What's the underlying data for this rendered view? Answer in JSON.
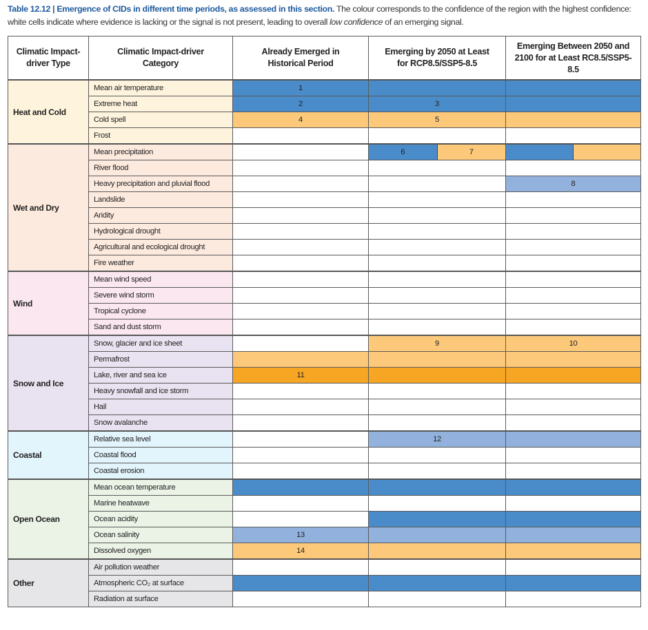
{
  "caption": {
    "bold": "Table 12.12 | Emergence of CIDs in different time periods, as assessed in this section.",
    "text1": " The colour corresponds to the confidence of the region with the highest confidence: white cells indicate where evidence is lacking or the signal is not present, leading to overall ",
    "italic": "low confidence",
    "text2": " of an emerging signal."
  },
  "colors": {
    "b": "#4a8bc9",
    "o": "#fcc97a",
    "l": "#92b2dd",
    "d": "#f6a623",
    "w": "#ffffff"
  },
  "headers": [
    "Climatic Impact-driver Type",
    "Climatic Impact-driver Category",
    "Already Emerged in Historical Period",
    "Emerging by 2050 at Least for RCP8.5/SSP5-8.5",
    "Emerging Between 2050 and 2100 for at Least RC8.5/SSP5-8.5"
  ],
  "groups": [
    {
      "type": "Heat and Cold",
      "bg": "#fef4dd",
      "rows": [
        {
          "category": "Mean air temperature",
          "cells": [
            {
              "c": "b",
              "label": "1"
            },
            {
              "c": "b"
            },
            {
              "c": "b"
            }
          ]
        },
        {
          "category": "Extreme heat",
          "cells": [
            {
              "c": "b",
              "label": "2"
            },
            {
              "c": "b",
              "label": "3"
            },
            {
              "c": "b"
            }
          ]
        },
        {
          "category": "Cold spell",
          "cells": [
            {
              "c": "o",
              "label": "4"
            },
            {
              "c": "o",
              "label": "5"
            },
            {
              "c": "o"
            }
          ]
        },
        {
          "category": "Frost",
          "cells": [
            {
              "c": "w"
            },
            {
              "c": "w"
            },
            {
              "c": "w"
            }
          ]
        }
      ]
    },
    {
      "type": "Wet and Dry",
      "bg": "#fdeadf",
      "rows": [
        {
          "category": "Mean precipitation",
          "cells": [
            {
              "c": "w"
            },
            {
              "split": [
                {
                  "c": "b",
                  "label": "6"
                },
                {
                  "c": "o",
                  "label": "7"
                }
              ]
            },
            {
              "split": [
                {
                  "c": "b"
                },
                {
                  "c": "o"
                }
              ]
            }
          ]
        },
        {
          "category": "River flood",
          "cells": [
            {
              "c": "w"
            },
            {
              "c": "w"
            },
            {
              "c": "w"
            }
          ]
        },
        {
          "category": "Heavy precipitation and pluvial flood",
          "cells": [
            {
              "c": "w"
            },
            {
              "c": "w"
            },
            {
              "c": "l",
              "label": "8"
            }
          ]
        },
        {
          "category": "Landslide",
          "cells": [
            {
              "c": "w"
            },
            {
              "c": "w"
            },
            {
              "c": "w"
            }
          ]
        },
        {
          "category": "Aridity",
          "cells": [
            {
              "c": "w"
            },
            {
              "c": "w"
            },
            {
              "c": "w"
            }
          ]
        },
        {
          "category": "Hydrological drought",
          "cells": [
            {
              "c": "w"
            },
            {
              "c": "w"
            },
            {
              "c": "w"
            }
          ]
        },
        {
          "category": "Agricultural and ecological drought",
          "cells": [
            {
              "c": "w"
            },
            {
              "c": "w"
            },
            {
              "c": "w"
            }
          ]
        },
        {
          "category": "Fire weather",
          "cells": [
            {
              "c": "w"
            },
            {
              "c": "w"
            },
            {
              "c": "w"
            }
          ]
        }
      ]
    },
    {
      "type": "Wind",
      "bg": "#fbe7f0",
      "rows": [
        {
          "category": "Mean wind speed",
          "cells": [
            {
              "c": "w"
            },
            {
              "c": "w"
            },
            {
              "c": "w"
            }
          ]
        },
        {
          "category": "Severe wind storm",
          "cells": [
            {
              "c": "w"
            },
            {
              "c": "w"
            },
            {
              "c": "w"
            }
          ]
        },
        {
          "category": "Tropical cyclone",
          "cells": [
            {
              "c": "w"
            },
            {
              "c": "w"
            },
            {
              "c": "w"
            }
          ]
        },
        {
          "category": "Sand and dust storm",
          "cells": [
            {
              "c": "w"
            },
            {
              "c": "w"
            },
            {
              "c": "w"
            }
          ]
        }
      ]
    },
    {
      "type": "Snow and Ice",
      "bg": "#e8e2f1",
      "rows": [
        {
          "category": "Snow, glacier and ice sheet",
          "cells": [
            {
              "c": "w"
            },
            {
              "c": "o",
              "label": "9"
            },
            {
              "c": "o",
              "label": "10"
            }
          ]
        },
        {
          "category": "Permafrost",
          "cells": [
            {
              "c": "o"
            },
            {
              "c": "o"
            },
            {
              "c": "o"
            }
          ]
        },
        {
          "category": "Lake, river and sea ice",
          "cells": [
            {
              "c": "d",
              "label": "11"
            },
            {
              "c": "d"
            },
            {
              "c": "d"
            }
          ]
        },
        {
          "category": "Heavy snowfall and ice storm",
          "cells": [
            {
              "c": "w"
            },
            {
              "c": "w"
            },
            {
              "c": "w"
            }
          ]
        },
        {
          "category": "Hail",
          "cells": [
            {
              "c": "w"
            },
            {
              "c": "w"
            },
            {
              "c": "w"
            }
          ]
        },
        {
          "category": "Snow avalanche",
          "cells": [
            {
              "c": "w"
            },
            {
              "c": "w"
            },
            {
              "c": "w"
            }
          ]
        }
      ]
    },
    {
      "type": "Coastal",
      "bg": "#e2f4fc",
      "rows": [
        {
          "category": "Relative sea level",
          "cells": [
            {
              "c": "w"
            },
            {
              "c": "l",
              "label": "12"
            },
            {
              "c": "l"
            }
          ]
        },
        {
          "category": "Coastal flood",
          "cells": [
            {
              "c": "w"
            },
            {
              "c": "w"
            },
            {
              "c": "w"
            }
          ]
        },
        {
          "category": "Coastal erosion",
          "cells": [
            {
              "c": "w"
            },
            {
              "c": "w"
            },
            {
              "c": "w"
            }
          ]
        }
      ]
    },
    {
      "type": "Open Ocean",
      "bg": "#ebf3e6",
      "rows": [
        {
          "category": "Mean ocean temperature",
          "cells": [
            {
              "c": "b"
            },
            {
              "c": "b"
            },
            {
              "c": "b"
            }
          ]
        },
        {
          "category": "Marine heatwave",
          "cells": [
            {
              "c": "w"
            },
            {
              "c": "w"
            },
            {
              "c": "w"
            }
          ]
        },
        {
          "category": "Ocean acidity",
          "cells": [
            {
              "c": "w"
            },
            {
              "c": "b"
            },
            {
              "c": "b"
            }
          ]
        },
        {
          "category": "Ocean salinity",
          "cells": [
            {
              "c": "l",
              "label": "13"
            },
            {
              "c": "l"
            },
            {
              "c": "l"
            }
          ]
        },
        {
          "category": "Dissolved oxygen",
          "cells": [
            {
              "c": "o",
              "label": "14"
            },
            {
              "c": "o"
            },
            {
              "c": "o"
            }
          ]
        }
      ]
    },
    {
      "type": "Other",
      "bg": "#e6e6e8",
      "rows": [
        {
          "category": "Air pollution weather",
          "cells": [
            {
              "c": "w"
            },
            {
              "c": "w"
            },
            {
              "c": "w"
            }
          ]
        },
        {
          "category": "Atmospheric CO₂ at surface",
          "cells": [
            {
              "c": "b"
            },
            {
              "c": "b"
            },
            {
              "c": "b"
            }
          ]
        },
        {
          "category": "Radiation at surface",
          "cells": [
            {
              "c": "w"
            },
            {
              "c": "w"
            },
            {
              "c": "w"
            }
          ]
        }
      ]
    }
  ]
}
